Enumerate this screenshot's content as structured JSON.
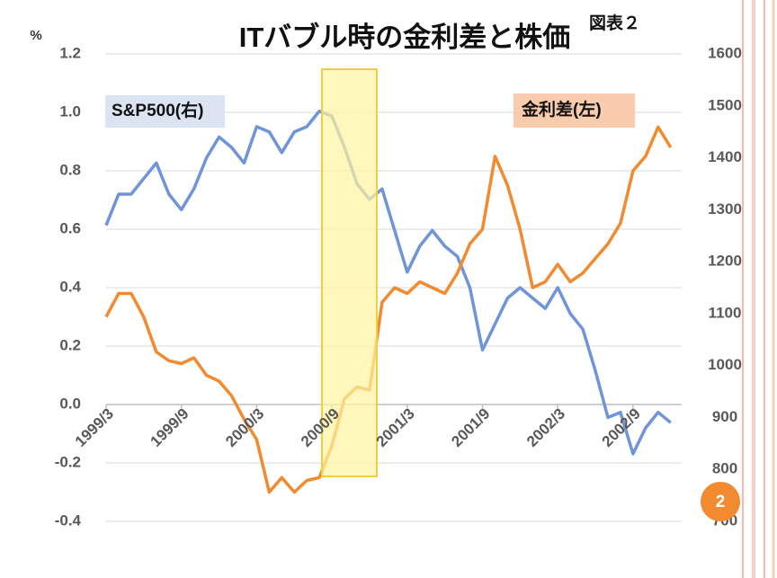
{
  "chart_data": {
    "type": "line",
    "title": "ITバブル時の金利差と株価",
    "subtitle": "図表２",
    "y_label": "%",
    "categories": [
      "1999/3",
      null,
      null,
      null,
      null,
      null,
      "1999/9",
      null,
      null,
      null,
      null,
      null,
      "2000/3",
      null,
      null,
      null,
      null,
      null,
      "2000/9",
      null,
      null,
      null,
      null,
      null,
      "2001/3",
      null,
      null,
      null,
      null,
      null,
      "2001/9",
      null,
      null,
      null,
      null,
      null,
      "2002/3",
      null,
      null,
      null,
      null,
      null,
      "2002/9",
      null,
      null,
      null
    ],
    "series": [
      {
        "name": "S&P500(右)",
        "color": "#7094d8",
        "axis": "y2",
        "values": [
          1270,
          1330,
          1330,
          1360,
          1390,
          1330,
          1300,
          1340,
          1400,
          1440,
          1420,
          1390,
          1460,
          1450,
          1410,
          1450,
          1460,
          1490,
          1480,
          1420,
          1350,
          1320,
          1340,
          1260,
          1180,
          1230,
          1260,
          1230,
          1210,
          1150,
          1030,
          1080,
          1130,
          1150,
          1130,
          1110,
          1150,
          1100,
          1070,
          990,
          900,
          910,
          830,
          880,
          910,
          890
        ]
      },
      {
        "name": "金利差(左)",
        "color": "#f28a30",
        "values": [
          0.3,
          0.38,
          0.38,
          0.3,
          0.18,
          0.15,
          0.14,
          0.16,
          0.1,
          0.08,
          0.03,
          -0.05,
          -0.12,
          -0.3,
          -0.25,
          -0.3,
          -0.26,
          -0.25,
          -0.14,
          0.02,
          0.06,
          0.05,
          0.35,
          0.4,
          0.38,
          0.42,
          0.4,
          0.38,
          0.45,
          0.55,
          0.6,
          0.85,
          0.75,
          0.6,
          0.4,
          0.42,
          0.48,
          0.42,
          0.45,
          0.5,
          0.55,
          0.62,
          0.8,
          0.85,
          0.95,
          0.88
        ]
      }
    ],
    "ylim": [
      -0.4,
      1.2
    ],
    "yticks": [
      -0.4,
      -0.2,
      {
        "value": 0,
        "label": "0.0"
      },
      0.2,
      0.4,
      0.6,
      0.8,
      {
        "value": 1,
        "label": "1.0"
      },
      1.2
    ],
    "y2lim": [
      700,
      1600
    ],
    "y2ticks": [
      700,
      800,
      900,
      1000,
      1100,
      1200,
      1300,
      1400,
      1500,
      1600
    ],
    "grid": true
  },
  "page_number": "2"
}
